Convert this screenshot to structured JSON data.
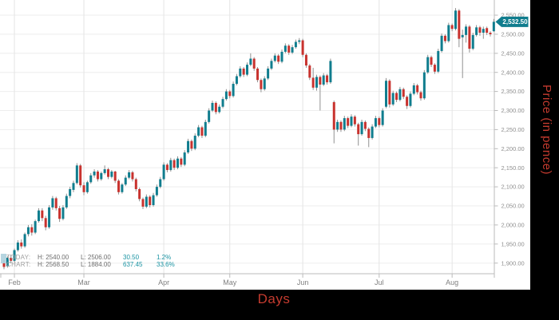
{
  "chart_data": {
    "type": "candlestick",
    "title": "",
    "xlabel": "Days",
    "ylabel": "Price (in pence)",
    "grid": true,
    "x_axis": {
      "unit": "days",
      "months": [
        {
          "label": "Feb",
          "day": 3
        },
        {
          "label": "Mar",
          "day": 23
        },
        {
          "label": "Apr",
          "day": 46
        },
        {
          "label": "May",
          "day": 65
        },
        {
          "label": "Jun",
          "day": 86
        },
        {
          "label": "Jul",
          "day": 108
        },
        {
          "label": "Aug",
          "day": 129
        }
      ]
    },
    "y_axis": {
      "ylim": [
        1867,
        2575
      ],
      "ticks": [
        {
          "v": 2550,
          "label": "2,550.00"
        },
        {
          "v": 2500,
          "label": "2,500.00"
        },
        {
          "v": 2450,
          "label": "2,450.00"
        },
        {
          "v": 2400,
          "label": "2,400.00"
        },
        {
          "v": 2350,
          "label": "2,350.00"
        },
        {
          "v": 2300,
          "label": "2,300.00"
        },
        {
          "v": 2250,
          "label": "2,250.00"
        },
        {
          "v": 2200,
          "label": "2,200.00"
        },
        {
          "v": 2150,
          "label": "2,150.00"
        },
        {
          "v": 2100,
          "label": "2,100.00"
        },
        {
          "v": 2050,
          "label": "2,050.00"
        },
        {
          "v": 2000,
          "label": "2,000.00"
        },
        {
          "v": 1950,
          "label": "1,950.00"
        },
        {
          "v": 1900,
          "label": "1,900.00"
        }
      ]
    },
    "current_price": {
      "value": 2532.5,
      "label": "2,532.50"
    },
    "legend": {
      "today": {
        "name": "TODAY:",
        "high": "H: 2540.00",
        "low": "L: 2506.00",
        "change": "30.50",
        "change_pct": "1.2%"
      },
      "chart": {
        "name": "CHART:",
        "high": "H: 2568.50",
        "low": "L: 1884.00",
        "change": "637.45",
        "change_pct": "33.6%"
      }
    },
    "colors": {
      "up": "#107d8e",
      "down": "#c8322e",
      "wick": "#909090",
      "grid": "#eeeeee",
      "month_grid": "#e4e4e4",
      "axis_line": "#bbbbbb",
      "tick_text": "#8f8f8f",
      "month_text": "#808080",
      "badge_bg": "#107d8e",
      "badge_text": "#ffffff",
      "axis_title": "#c53b2f"
    },
    "candles": [
      [
        1900,
        1908,
        1884,
        1890
      ],
      [
        1892,
        1918,
        1888,
        1914
      ],
      [
        1914,
        1922,
        1900,
        1906
      ],
      [
        1906,
        1938,
        1902,
        1934
      ],
      [
        1934,
        1960,
        1930,
        1954
      ],
      [
        1954,
        1962,
        1938,
        1944
      ],
      [
        1944,
        1980,
        1940,
        1976
      ],
      [
        1976,
        2000,
        1970,
        1994
      ],
      [
        1994,
        2002,
        1972,
        1980
      ],
      [
        1980,
        2014,
        1976,
        2010
      ],
      [
        2010,
        2044,
        2006,
        2038
      ],
      [
        2038,
        2044,
        2010,
        2018
      ],
      [
        2018,
        2024,
        1986,
        1994
      ],
      [
        1994,
        2052,
        1990,
        2046
      ],
      [
        2046,
        2076,
        2040,
        2070
      ],
      [
        2070,
        2074,
        2038,
        2044
      ],
      [
        2044,
        2050,
        2008,
        2016
      ],
      [
        2016,
        2052,
        2012,
        2046
      ],
      [
        2046,
        2082,
        2042,
        2076
      ],
      [
        2076,
        2100,
        2070,
        2094
      ],
      [
        2092,
        2116,
        2086,
        2110
      ],
      [
        2110,
        2162,
        2106,
        2156
      ],
      [
        2156,
        2160,
        2098,
        2104
      ],
      [
        2104,
        2112,
        2078,
        2086
      ],
      [
        2086,
        2116,
        2082,
        2112
      ],
      [
        2112,
        2136,
        2108,
        2130
      ],
      [
        2130,
        2146,
        2124,
        2140
      ],
      [
        2140,
        2144,
        2114,
        2120
      ],
      [
        2120,
        2140,
        2116,
        2136
      ],
      [
        2136,
        2156,
        2132,
        2146
      ],
      [
        2146,
        2150,
        2120,
        2126
      ],
      [
        2126,
        2144,
        2122,
        2140
      ],
      [
        2140,
        2142,
        2110,
        2116
      ],
      [
        2116,
        2120,
        2080,
        2086
      ],
      [
        2086,
        2110,
        2082,
        2106
      ],
      [
        2106,
        2130,
        2102,
        2124
      ],
      [
        2124,
        2144,
        2120,
        2138
      ],
      [
        2138,
        2142,
        2114,
        2120
      ],
      [
        2120,
        2124,
        2088,
        2094
      ],
      [
        2094,
        2098,
        2062,
        2068
      ],
      [
        2068,
        2072,
        2042,
        2048
      ],
      [
        2048,
        2080,
        2044,
        2074
      ],
      [
        2074,
        2078,
        2046,
        2052
      ],
      [
        2052,
        2084,
        2048,
        2078
      ],
      [
        2078,
        2106,
        2074,
        2100
      ],
      [
        2100,
        2126,
        2096,
        2120
      ],
      [
        2120,
        2164,
        2116,
        2158
      ],
      [
        2158,
        2162,
        2138,
        2144
      ],
      [
        2144,
        2176,
        2140,
        2170
      ],
      [
        2170,
        2174,
        2144,
        2150
      ],
      [
        2150,
        2180,
        2146,
        2174
      ],
      [
        2174,
        2178,
        2152,
        2158
      ],
      [
        2158,
        2196,
        2154,
        2190
      ],
      [
        2190,
        2226,
        2186,
        2220
      ],
      [
        2220,
        2224,
        2194,
        2200
      ],
      [
        2200,
        2240,
        2196,
        2234
      ],
      [
        2234,
        2262,
        2230,
        2256
      ],
      [
        2256,
        2260,
        2228,
        2234
      ],
      [
        2234,
        2276,
        2230,
        2270
      ],
      [
        2270,
        2306,
        2266,
        2300
      ],
      [
        2300,
        2326,
        2296,
        2320
      ],
      [
        2320,
        2324,
        2290,
        2296
      ],
      [
        2296,
        2316,
        2292,
        2310
      ],
      [
        2310,
        2336,
        2306,
        2330
      ],
      [
        2330,
        2356,
        2326,
        2350
      ],
      [
        2350,
        2354,
        2332,
        2338
      ],
      [
        2338,
        2376,
        2334,
        2370
      ],
      [
        2370,
        2396,
        2366,
        2390
      ],
      [
        2390,
        2416,
        2386,
        2410
      ],
      [
        2410,
        2414,
        2388,
        2394
      ],
      [
        2394,
        2426,
        2390,
        2420
      ],
      [
        2420,
        2450,
        2416,
        2436
      ],
      [
        2436,
        2440,
        2404,
        2410
      ],
      [
        2410,
        2414,
        2374,
        2380
      ],
      [
        2380,
        2384,
        2348,
        2356
      ],
      [
        2356,
        2390,
        2352,
        2384
      ],
      [
        2384,
        2416,
        2380,
        2410
      ],
      [
        2410,
        2436,
        2406,
        2430
      ],
      [
        2430,
        2450,
        2426,
        2444
      ],
      [
        2444,
        2448,
        2422,
        2428
      ],
      [
        2428,
        2460,
        2424,
        2454
      ],
      [
        2454,
        2476,
        2450,
        2470
      ],
      [
        2470,
        2474,
        2446,
        2452
      ],
      [
        2452,
        2472,
        2448,
        2466
      ],
      [
        2466,
        2486,
        2462,
        2480
      ],
      [
        2480,
        2490,
        2474,
        2484
      ],
      [
        2484,
        2488,
        2440,
        2446
      ],
      [
        2446,
        2450,
        2412,
        2418
      ],
      [
        2418,
        2422,
        2380,
        2386
      ],
      [
        2386,
        2412,
        2354,
        2360
      ],
      [
        2360,
        2394,
        2352,
        2388
      ],
      [
        2388,
        2392,
        2300,
        2368
      ],
      [
        2368,
        2398,
        2364,
        2392
      ],
      [
        2392,
        2396,
        2368,
        2374
      ],
      [
        2374,
        2436,
        2370,
        2430
      ],
      [
        2322,
        2326,
        2214,
        2250
      ],
      [
        2250,
        2276,
        2244,
        2270
      ],
      [
        2270,
        2274,
        2244,
        2250
      ],
      [
        2250,
        2286,
        2246,
        2280
      ],
      [
        2280,
        2284,
        2254,
        2260
      ],
      [
        2260,
        2290,
        2256,
        2284
      ],
      [
        2284,
        2288,
        2258,
        2264
      ],
      [
        2264,
        2268,
        2208,
        2238
      ],
      [
        2238,
        2276,
        2234,
        2270
      ],
      [
        2270,
        2274,
        2246,
        2252
      ],
      [
        2252,
        2256,
        2204,
        2228
      ],
      [
        2228,
        2264,
        2224,
        2258
      ],
      [
        2258,
        2286,
        2254,
        2280
      ],
      [
        2280,
        2284,
        2256,
        2262
      ],
      [
        2262,
        2306,
        2258,
        2300
      ],
      [
        2310,
        2385,
        2306,
        2378
      ],
      [
        2378,
        2382,
        2308,
        2316
      ],
      [
        2316,
        2352,
        2312,
        2346
      ],
      [
        2346,
        2350,
        2322,
        2328
      ],
      [
        2328,
        2362,
        2324,
        2356
      ],
      [
        2356,
        2360,
        2330,
        2336
      ],
      [
        2336,
        2340,
        2304,
        2312
      ],
      [
        2312,
        2350,
        2308,
        2344
      ],
      [
        2344,
        2372,
        2340,
        2366
      ],
      [
        2366,
        2370,
        2342,
        2348
      ],
      [
        2348,
        2352,
        2326,
        2332
      ],
      [
        2332,
        2406,
        2328,
        2400
      ],
      [
        2400,
        2446,
        2396,
        2440
      ],
      [
        2440,
        2444,
        2414,
        2420
      ],
      [
        2420,
        2424,
        2396,
        2402
      ],
      [
        2402,
        2462,
        2398,
        2456
      ],
      [
        2456,
        2502,
        2452,
        2496
      ],
      [
        2496,
        2500,
        2476,
        2482
      ],
      [
        2482,
        2530,
        2478,
        2524
      ],
      [
        2524,
        2528,
        2508,
        2514
      ],
      [
        2514,
        2568.5,
        2510,
        2562
      ],
      [
        2562,
        2566,
        2466,
        2488
      ],
      [
        2492,
        2512,
        2385,
        2498
      ],
      [
        2498,
        2526,
        2478,
        2520
      ],
      [
        2520,
        2524,
        2452,
        2462
      ],
      [
        2462,
        2504,
        2458,
        2498
      ],
      [
        2498,
        2524,
        2494,
        2518
      ],
      [
        2518,
        2522,
        2496,
        2504
      ],
      [
        2504,
        2520,
        2488,
        2514
      ],
      [
        2516,
        2520,
        2498,
        2504
      ],
      [
        2504,
        2508,
        2494,
        2500
      ],
      [
        2508,
        2540,
        2506,
        2532.5
      ]
    ]
  }
}
